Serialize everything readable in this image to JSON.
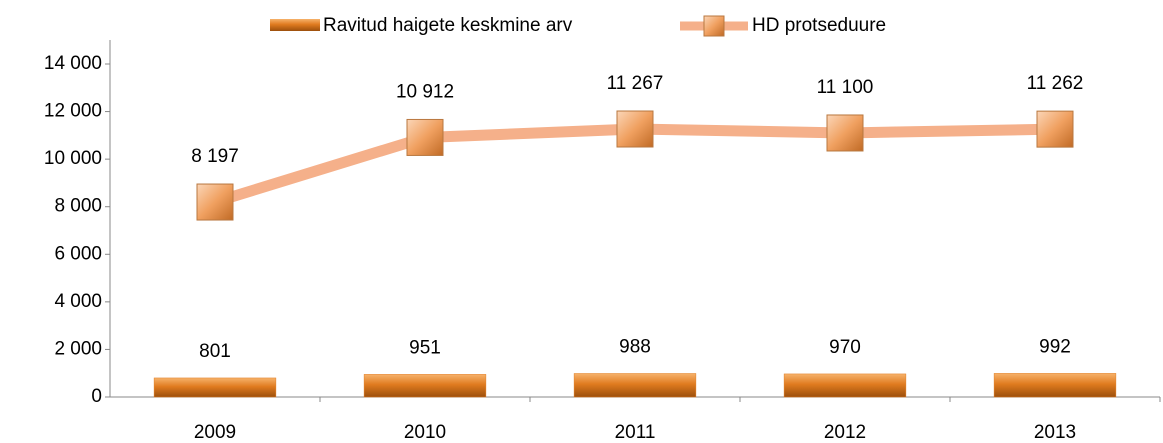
{
  "chart_data": {
    "type": "bar",
    "categories": [
      "2009",
      "2010",
      "2011",
      "2012",
      "2013"
    ],
    "series": [
      {
        "name": "Ravitud haigete keskmine arv",
        "type": "bar",
        "color": "#e07b1f",
        "values": [
          801,
          951,
          988,
          970,
          992
        ]
      },
      {
        "name": "HD protseduure",
        "type": "line",
        "color": "#f5b08a",
        "values": [
          8197,
          10912,
          11267,
          11100,
          11262
        ],
        "value_labels": [
          "8 197",
          "10 912",
          "11 267",
          "11 100",
          "11 262"
        ]
      }
    ],
    "ylim": [
      0,
      14000
    ],
    "yticks": [
      0,
      {
        "value": 2000,
        "label": "2 000"
      },
      {
        "value": 4000,
        "label": "4 000"
      },
      {
        "value": 6000,
        "label": "6 000"
      },
      {
        "value": 8000,
        "label": "8 000"
      },
      {
        "value": 10000,
        "label": "10 000"
      },
      {
        "value": 12000,
        "label": "12 000"
      },
      {
        "value": 14000,
        "label": "14 000"
      }
    ],
    "legend": "top"
  }
}
